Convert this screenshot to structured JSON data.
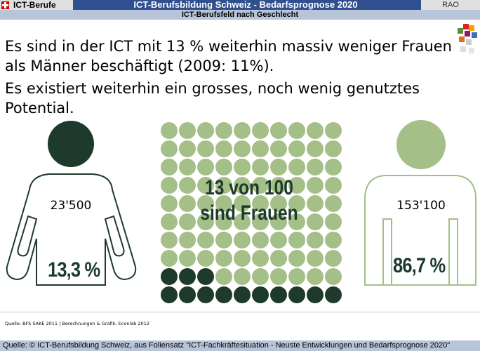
{
  "header": {
    "logo_label": "ICT-Berufe",
    "title": "ICT-Berufsbildung Schweiz - Bedarfsprognose 2020",
    "right_label": "RAO",
    "subtitle": "ICT-Berufsfeld nach Geschlecht"
  },
  "headline": {
    "line1": "Es sind in der ICT mit 13 % weiterhin massiv weniger Frauen als Männer beschäftigt (2009: 11%).",
    "line2": "Es existiert weiterhin ein grosses, noch wenig genutztes Potential."
  },
  "women": {
    "count": "23'500",
    "percent": "13,3 %"
  },
  "men": {
    "count": "153'100",
    "percent": "86,7 %"
  },
  "grid": {
    "label_line1": "13 von 100",
    "label_line2": "sind Frauen",
    "total": 100,
    "women": 13,
    "colors": {
      "women": "#1d3a2c",
      "men": "#a4bf88"
    }
  },
  "colors": {
    "dark_green": "#1d3a2c",
    "light_green": "#a4bf88",
    "header_blue": "#2f4f8f",
    "bar_grey": "#b8c4d8"
  },
  "source_note": "Quelle: BFS SAKE 2011 | Berechnungen & Grafik: Econlab 2012",
  "footer": "Quelle: © ICT-Berufsbildung Schweiz, aus Foliensatz \"ICT-Fachkräftesituation - Neuste Entwicklungen und Bedarfsprognose 2020\""
}
